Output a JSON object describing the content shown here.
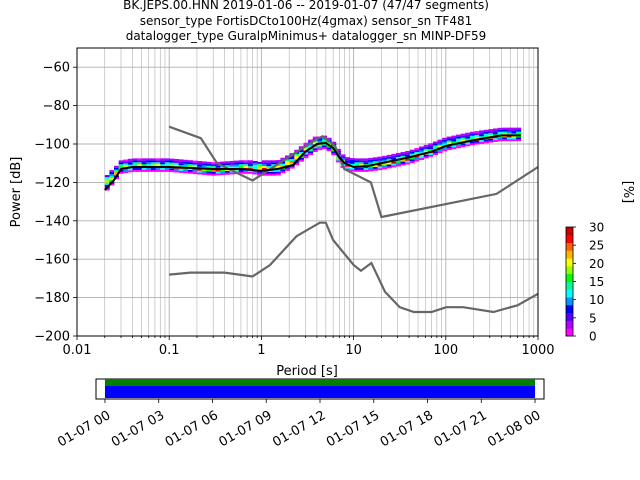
{
  "title_lines": [
    "BK.JEPS.00.HNN   2019-01-06 -- 2019-01-07  (47/47 segments)",
    "sensor_type FortisDCto100Hz(4gmax) sensor_sn TF481",
    "datalogger_type GuralpMinimus+ datalogger_sn MINP-DF59"
  ],
  "colorbar_label": "[%]",
  "chart_data": [
    {
      "type": "heatmap",
      "name": "ppsd",
      "xlabel": "Period [s]",
      "ylabel": "Power [dB]",
      "xscale": "log",
      "xlim": [
        0.01,
        1000
      ],
      "ylim": [
        -200,
        -50
      ],
      "grid": true,
      "x_tick_labels": [
        "0.01",
        "0.1",
        "1",
        "10",
        "100",
        "1000"
      ],
      "x_ticks": [
        0.01,
        0.1,
        1,
        10,
        100,
        1000
      ],
      "y_ticks": [
        -200,
        -180,
        -160,
        -140,
        -120,
        -100,
        -80,
        -60
      ],
      "y_tick_labels": [
        "−200",
        "−180",
        "−160",
        "−140",
        "−120",
        "−100",
        "−80",
        "−60"
      ],
      "noise_model_high": [
        [
          0.1,
          -91
        ],
        [
          0.22,
          -97
        ],
        [
          0.33,
          -110
        ],
        [
          0.8,
          -119
        ],
        [
          3.8,
          -98
        ],
        [
          4.6,
          -96
        ],
        [
          6.3,
          -101
        ],
        [
          7.9,
          -113
        ],
        [
          15.4,
          -120
        ],
        [
          20,
          -138
        ],
        [
          354.8,
          -126
        ],
        [
          1000,
          -112
        ]
      ],
      "noise_model_low": [
        [
          0.1,
          -168
        ],
        [
          0.17,
          -167
        ],
        [
          0.4,
          -167
        ],
        [
          0.8,
          -169
        ],
        [
          1.24,
          -163
        ],
        [
          2.4,
          -148
        ],
        [
          4.3,
          -141
        ],
        [
          5,
          -141
        ],
        [
          6,
          -150
        ],
        [
          10,
          -163
        ],
        [
          12,
          -166
        ],
        [
          15.6,
          -162
        ],
        [
          21.9,
          -177
        ],
        [
          31.6,
          -185
        ],
        [
          45,
          -187.5
        ],
        [
          70,
          -187.5
        ],
        [
          101,
          -185
        ],
        [
          154,
          -185
        ],
        [
          328,
          -187.5
        ],
        [
          600,
          -184
        ],
        [
          1000,
          -178
        ]
      ],
      "mean_curve": [
        [
          0.02,
          -124
        ],
        [
          0.025,
          -119
        ],
        [
          0.03,
          -113
        ],
        [
          0.04,
          -112
        ],
        [
          0.1,
          -112
        ],
        [
          0.3,
          -113
        ],
        [
          0.6,
          -113
        ],
        [
          1,
          -114
        ],
        [
          1.5,
          -113
        ],
        [
          2.2,
          -111
        ],
        [
          3,
          -104
        ],
        [
          4,
          -100
        ],
        [
          5,
          -99.5
        ],
        [
          6,
          -102
        ],
        [
          7,
          -107
        ],
        [
          8,
          -110
        ],
        [
          10,
          -112
        ],
        [
          14,
          -111.5
        ],
        [
          20,
          -110
        ],
        [
          40,
          -107
        ],
        [
          70,
          -104
        ],
        [
          100,
          -101
        ],
        [
          200,
          -98
        ],
        [
          400,
          -95.5
        ],
        [
          650,
          -95.5
        ]
      ],
      "mode_curve": [
        [
          0.02,
          -121
        ],
        [
          0.025,
          -117
        ],
        [
          0.03,
          -113
        ],
        [
          0.04,
          -112
        ],
        [
          0.1,
          -112
        ],
        [
          0.3,
          -114
        ],
        [
          0.6,
          -113
        ],
        [
          1,
          -113
        ],
        [
          1.5,
          -113
        ],
        [
          2.2,
          -109
        ],
        [
          3,
          -104
        ],
        [
          4,
          -100
        ],
        [
          5,
          -100
        ],
        [
          6,
          -103
        ],
        [
          7,
          -108
        ],
        [
          8,
          -111
        ],
        [
          10,
          -112
        ],
        [
          14,
          -112
        ],
        [
          20,
          -111
        ],
        [
          40,
          -108
        ],
        [
          70,
          -104
        ],
        [
          100,
          -101
        ],
        [
          200,
          -98
        ],
        [
          400,
          -96
        ],
        [
          650,
          -96
        ]
      ],
      "upper_curve": [
        [
          0.02,
          -122
        ],
        [
          0.025,
          -117
        ],
        [
          0.03,
          -111
        ],
        [
          0.04,
          -108
        ],
        [
          0.1,
          -108
        ],
        [
          0.15,
          -106
        ],
        [
          0.2,
          -105.5
        ],
        [
          0.3,
          -105.5
        ],
        [
          0.5,
          -109
        ],
        [
          0.6,
          -111
        ],
        [
          1,
          -113
        ],
        [
          1.5,
          -113
        ],
        [
          2.2,
          -109
        ],
        [
          3,
          -104
        ],
        [
          4,
          -100
        ],
        [
          5,
          -99
        ],
        [
          6,
          -101
        ],
        [
          7,
          -106
        ],
        [
          8,
          -108
        ],
        [
          10,
          -109
        ],
        [
          14,
          -108
        ],
        [
          20,
          -106
        ],
        [
          40,
          -103
        ],
        [
          70,
          -99
        ],
        [
          100,
          -97
        ],
        [
          200,
          -94
        ],
        [
          400,
          -92
        ],
        [
          650,
          -92
        ]
      ]
    },
    {
      "type": "colorbar",
      "name": "colorbar",
      "label": "[%]",
      "range": [
        0,
        30
      ],
      "ticks": [
        0,
        5,
        10,
        15,
        20,
        25,
        30
      ],
      "tick_labels": [
        "0",
        "5",
        "10",
        "15",
        "20",
        "25",
        "30"
      ]
    },
    {
      "type": "timeline",
      "name": "data-coverage",
      "tick_labels": [
        "01-07 00",
        "01-07 03",
        "01-07 06",
        "01-07 09",
        "01-07 12",
        "01-07 15",
        "01-07 18",
        "01-07 21",
        "01-08 00"
      ],
      "range": [
        -0.5,
        24.5
      ],
      "coverage": [
        0,
        24
      ],
      "series": [
        {
          "name": "data",
          "color": "#0000ff"
        },
        {
          "name": "used",
          "color": "#008000"
        }
      ]
    }
  ],
  "colors": {
    "noise_model": "#666666",
    "mean_curve": "#000000",
    "grid": "#b0b0b0",
    "colormap": [
      "#ffffff",
      "#ff00ff",
      "#b400ff",
      "#5000ff",
      "#0000ff",
      "#0096ff",
      "#00ffff",
      "#00ff96",
      "#00ff00",
      "#96ff00",
      "#ffff00",
      "#ffb400",
      "#ff6400",
      "#ff0000",
      "#c80000"
    ]
  }
}
